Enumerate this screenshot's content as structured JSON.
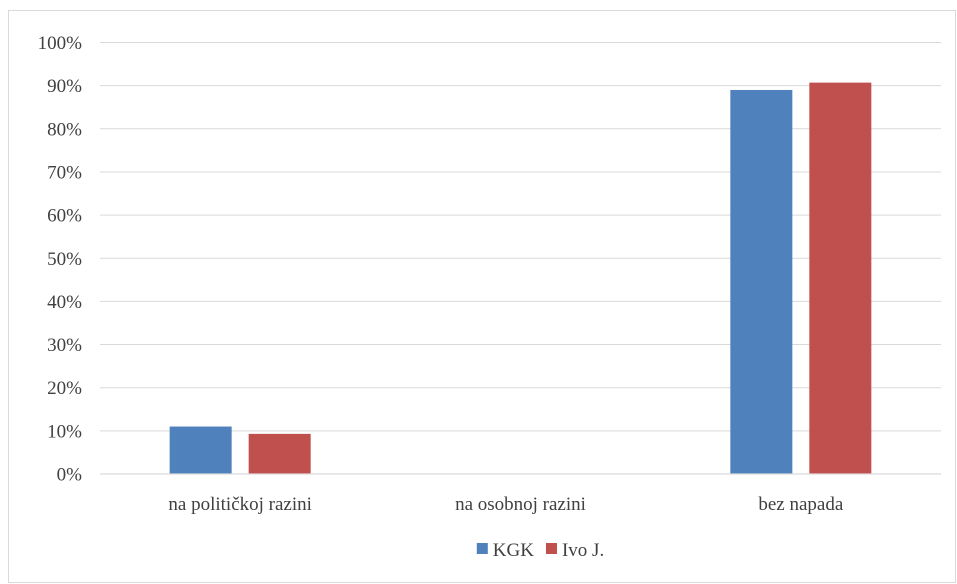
{
  "chart_data": {
    "type": "bar",
    "categories": [
      "na političkoj razini",
      "na osobnoj razini",
      "bez napada"
    ],
    "series": [
      {
        "name": "KGK",
        "color": "#4f81bd",
        "values": [
          11,
          0,
          89
        ]
      },
      {
        "name": "Ivo J.",
        "color": "#c0504d",
        "values": [
          9.3,
          0,
          90.7
        ]
      }
    ],
    "ylim": [
      0,
      100
    ],
    "yticks": [
      "0%",
      "10%",
      "20%",
      "30%",
      "40%",
      "50%",
      "60%",
      "70%",
      "80%",
      "90%",
      "100%"
    ],
    "gridlines": true,
    "gridline_color": "#d9d9d9",
    "legend_position": "bottom",
    "title": "",
    "xlabel": "",
    "ylabel": ""
  }
}
